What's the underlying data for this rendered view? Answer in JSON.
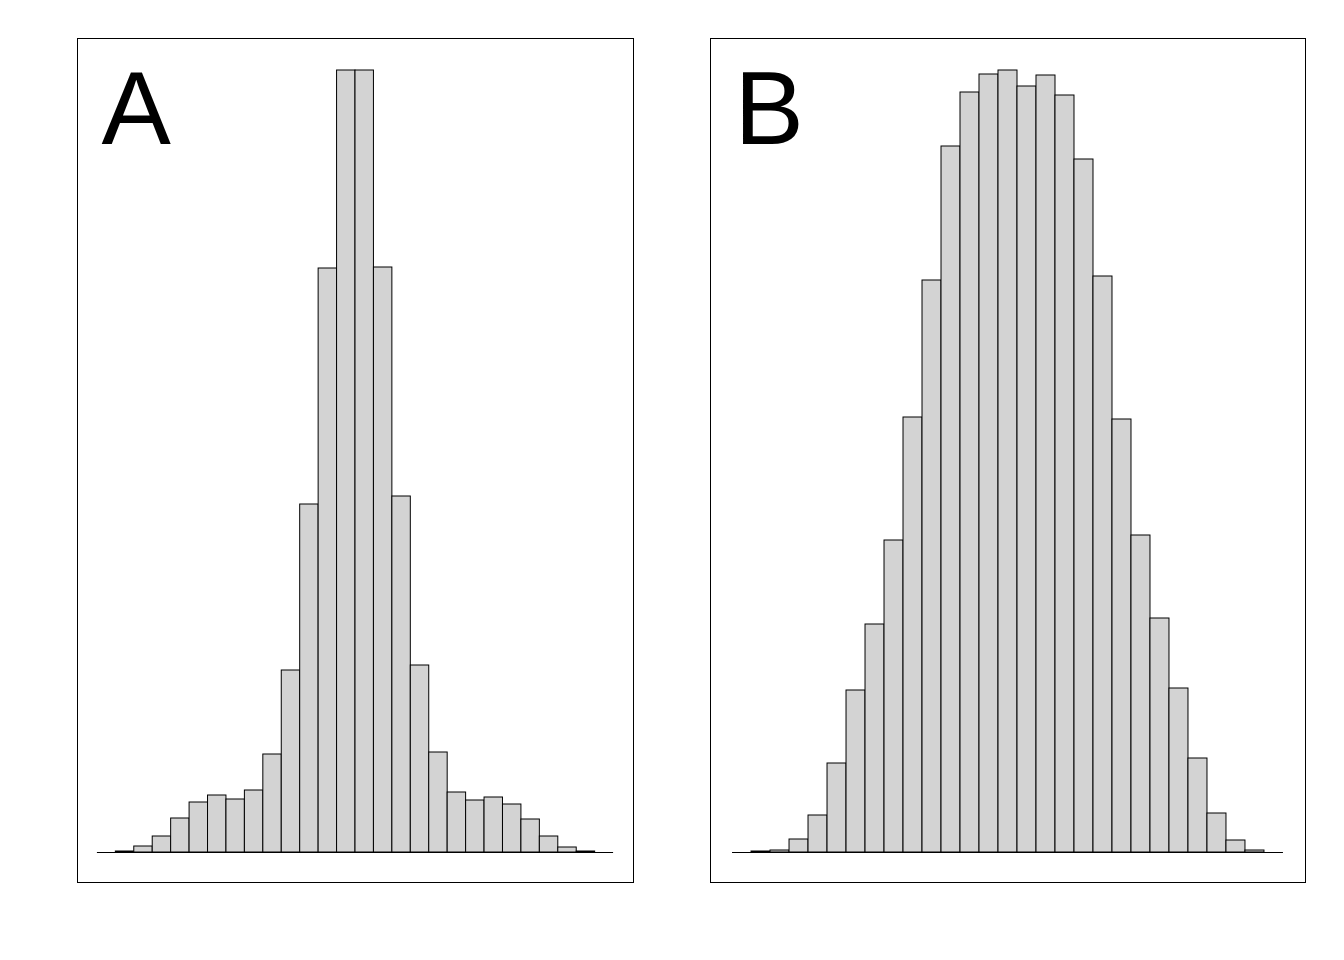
{
  "chart_data": [
    {
      "type": "histogram",
      "title": "A",
      "color": "#d3d3d3",
      "tick_labels": false,
      "bins": [
        0,
        1,
        2,
        3,
        4,
        5,
        6,
        7,
        8,
        9,
        10,
        11,
        12,
        13,
        14,
        15,
        16,
        17,
        18,
        19,
        20,
        21,
        22,
        23,
        24,
        25,
        26,
        27,
        28
      ],
      "counts": [
        0,
        1,
        6,
        16,
        34,
        50,
        57,
        53,
        62,
        98,
        182,
        348,
        584,
        782,
        782,
        585,
        356,
        187,
        100,
        60,
        52,
        55,
        48,
        33,
        16,
        5,
        1,
        0
      ],
      "xlim": [
        -1.08,
        29.08
      ],
      "ylim": [
        -30,
        814
      ]
    },
    {
      "type": "histogram",
      "title": "B",
      "color": "#d3d3d3",
      "tick_labels": false,
      "bins": [
        0,
        1,
        2,
        3,
        4,
        5,
        6,
        7,
        8,
        9,
        10,
        11,
        12,
        13,
        14,
        15,
        16,
        17,
        18,
        19,
        20,
        21,
        22,
        23,
        24,
        25,
        26,
        27,
        28,
        29
      ],
      "counts": [
        0,
        1,
        2,
        13,
        37,
        89,
        162,
        228,
        312,
        435,
        572,
        706,
        760,
        778,
        782,
        766,
        777,
        757,
        693,
        576,
        433,
        317,
        234,
        164,
        94,
        39,
        12,
        2,
        0
      ],
      "xlim": [
        -1.16,
        30.16
      ],
      "ylim": [
        -30,
        814
      ]
    }
  ]
}
